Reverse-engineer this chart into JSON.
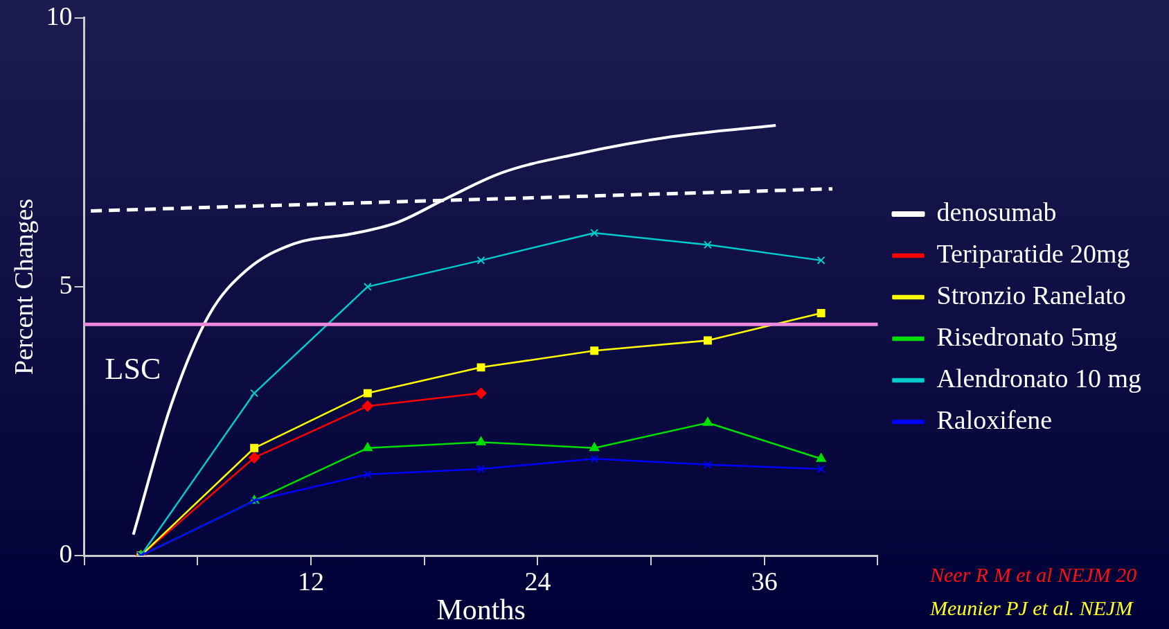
{
  "chart_data": {
    "type": "line",
    "xlabel": "Months",
    "ylabel": "Percent Changes",
    "xlim": [
      0,
      42
    ],
    "ylim": [
      0,
      10
    ],
    "xticks": [
      {
        "value": 0,
        "label": null
      },
      {
        "value": 6,
        "label": null
      },
      12,
      {
        "value": 18,
        "label": null
      },
      24,
      {
        "value": 30,
        "label": null
      },
      36,
      {
        "value": 42,
        "label": null
      }
    ],
    "yticks": [
      0,
      5,
      10
    ],
    "grid": false,
    "legend": "right",
    "series": [
      {
        "name": "denosumab",
        "color": "#ffffff",
        "marker": "none",
        "x": [
          2.6,
          4.6,
          6.6,
          8.6,
          11.1,
          14.1,
          16.6,
          19.1,
          22.1,
          26.1,
          31.1,
          36.6
        ],
        "values": [
          0.39,
          2.8,
          4.47,
          5.31,
          5.8,
          5.98,
          6.2,
          6.63,
          7.12,
          7.47,
          7.79,
          8.0
        ]
      },
      {
        "name": "Teriparatide 20mg",
        "color": "#ff0000",
        "marker": "diamond",
        "x": [
          3,
          9,
          15,
          21
        ],
        "values": [
          0,
          1.82,
          2.78,
          3.02
        ]
      },
      {
        "name": "Stronzio Ranelato",
        "color": "#ffff00",
        "marker": "square",
        "x": [
          3,
          9,
          15,
          21,
          27,
          33,
          39
        ],
        "values": [
          0,
          2.0,
          3.02,
          3.5,
          3.81,
          4.0,
          4.51
        ]
      },
      {
        "name": "Risedronato 5mg",
        "color": "#00dd00",
        "marker": "triangle",
        "x": [
          3,
          9,
          15,
          21,
          27,
          33,
          39
        ],
        "values": [
          0,
          1.02,
          2.0,
          2.11,
          2.0,
          2.47,
          1.8
        ]
      },
      {
        "name": "Alendronato 10 mg",
        "color": "#00cccc",
        "marker": "cross",
        "x": [
          3,
          9,
          15,
          21,
          27,
          33,
          39
        ],
        "values": [
          0,
          3.02,
          5.0,
          5.49,
          6.0,
          5.78,
          5.49
        ]
      },
      {
        "name": "Raloxifene",
        "color": "#0000ff",
        "marker": "cross",
        "x": [
          3,
          9,
          15,
          21,
          27,
          33,
          39
        ],
        "values": [
          0,
          1.02,
          1.51,
          1.61,
          1.8,
          1.69,
          1.61
        ]
      },
      {
        "color": "#ffffff",
        "marker": "none",
        "line_style": "dashed",
        "x": [
          0.35,
          39.6
        ],
        "values": [
          6.41,
          6.82
        ]
      }
    ],
    "ref_lines": [
      {
        "axis": "y",
        "value": 4.3,
        "label": "LSC",
        "color": "#ee88dd"
      }
    ],
    "annotations": [
      "Neer R M et al NEJM 20",
      "Meunier PJ et al. NEJM"
    ]
  }
}
